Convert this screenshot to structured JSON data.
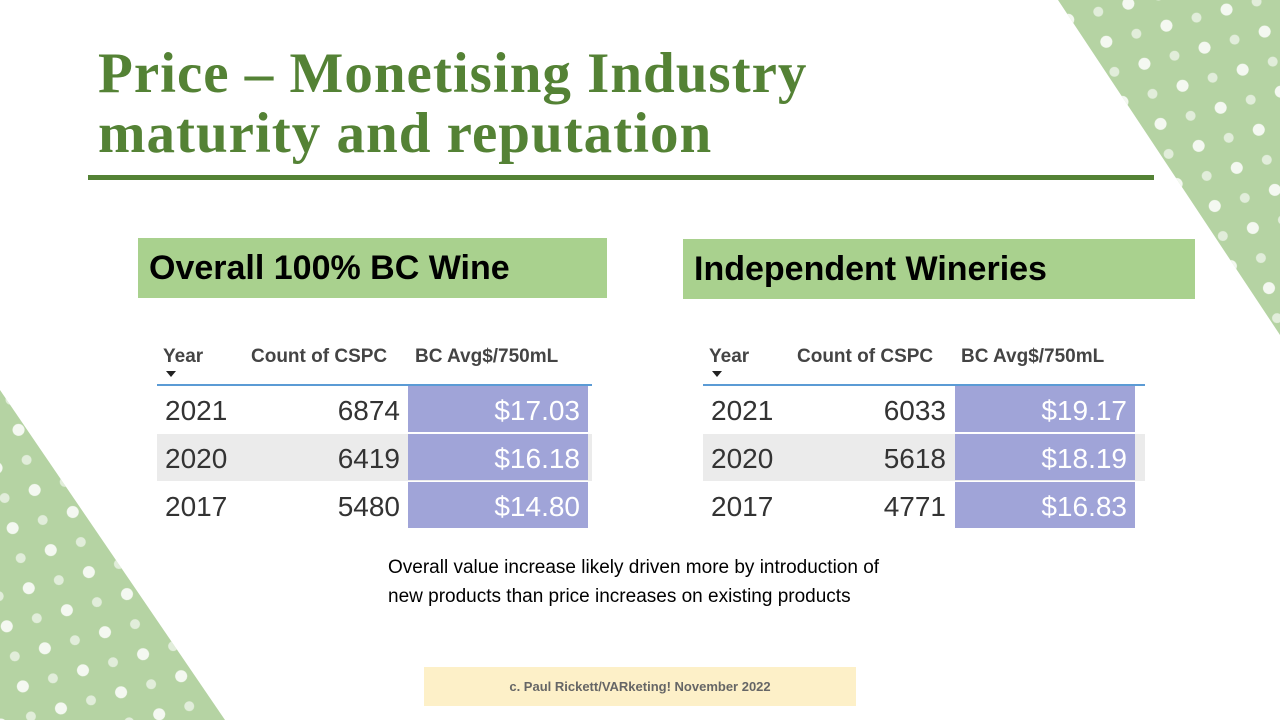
{
  "title": "Price – Monetising Industry maturity and reputation",
  "tables": [
    {
      "heading": "Overall 100% BC Wine",
      "columns": [
        "Year",
        "Count of CSPC",
        "BC Avg$/750mL"
      ],
      "rows": [
        [
          "2021",
          "6874",
          "$17.03"
        ],
        [
          "2020",
          "6419",
          "$16.18"
        ],
        [
          "2017",
          "5480",
          "$14.80"
        ]
      ]
    },
    {
      "heading": "Independent Wineries",
      "columns": [
        "Year",
        "Count of CSPC",
        "BC Avg$/750mL"
      ],
      "rows": [
        [
          "2021",
          "6033",
          "$19.17"
        ],
        [
          "2020",
          "5618",
          "$18.19"
        ],
        [
          "2017",
          "4771",
          "$16.83"
        ]
      ]
    }
  ],
  "note": "Overall value increase likely driven more by introduction of new products than price increases on existing products",
  "footer": "c. Paul Rickett/VARketing! November 2022"
}
